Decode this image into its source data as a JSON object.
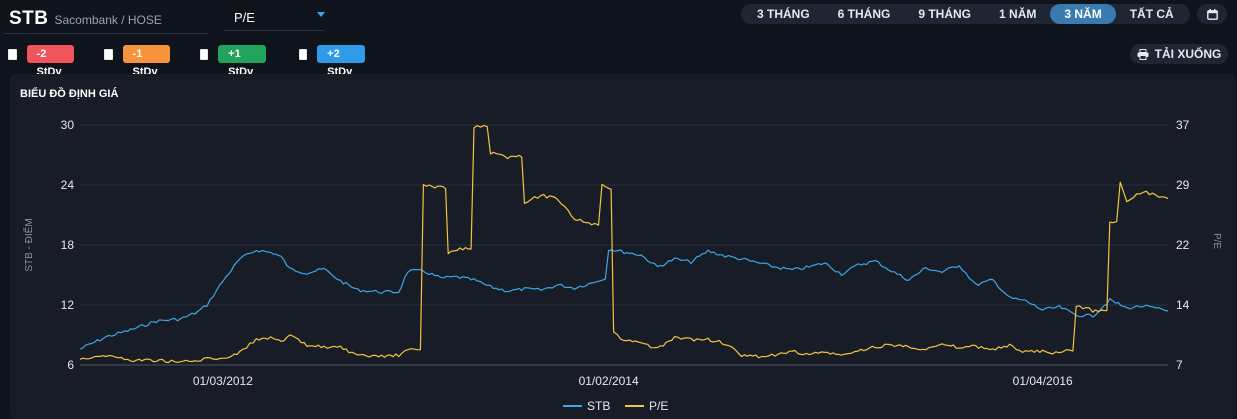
{
  "header": {
    "ticker": "STB",
    "exchange": "Sacombank / HOSE",
    "metric": "P/E"
  },
  "ranges": [
    {
      "label": "3 THÁNG",
      "active": false
    },
    {
      "label": "6 THÁNG",
      "active": false
    },
    {
      "label": "9 THÁNG",
      "active": false
    },
    {
      "label": "1 NĂM",
      "active": false
    },
    {
      "label": "3 NĂM",
      "active": true
    },
    {
      "label": "TẤT CẢ",
      "active": false
    }
  ],
  "stdv": [
    {
      "label": "-2 StDv",
      "color": "#f0545b"
    },
    {
      "label": "-1 StDv",
      "color": "#f7933b"
    },
    {
      "label": "+1 StDv",
      "color": "#21a35b"
    },
    {
      "label": "+2 StDv",
      "color": "#2f9be8"
    }
  ],
  "download_label": "TẢI XUỐNG",
  "panel_title": "BIỂU ĐỒ ĐỊNH GIÁ",
  "chart_data": {
    "type": "line",
    "ylabel_left": "STB - ĐIỂM",
    "ylabel_right": "P/E",
    "ylim_left": [
      6,
      30
    ],
    "ylim_right": [
      7,
      37
    ],
    "yticks_left": [
      6,
      12,
      18,
      24,
      30
    ],
    "yticks_right": [
      7,
      14,
      22,
      29,
      37
    ],
    "grid": true,
    "legend_position": "bottom-center",
    "x_range": [
      "2011-06-15",
      "2016-11-15"
    ],
    "xtick_labels": [
      {
        "date": "2012-03-01",
        "label": "01/03/2012"
      },
      {
        "date": "2014-02-01",
        "label": "01/02/2014"
      },
      {
        "date": "2016-04-01",
        "label": "01/04/2016"
      }
    ],
    "series": [
      {
        "name": "STB",
        "axis": "left",
        "color": "#3ea6e6",
        "points": [
          [
            "2011-06-15",
            7.6
          ],
          [
            "2011-08-01",
            8.8
          ],
          [
            "2011-09-15",
            9.5
          ],
          [
            "2011-11-01",
            10.4
          ],
          [
            "2011-12-15",
            10.6
          ],
          [
            "2012-01-15",
            11.3
          ],
          [
            "2012-02-01",
            12.0
          ],
          [
            "2012-03-01",
            14.4
          ],
          [
            "2012-04-01",
            16.6
          ],
          [
            "2012-05-01",
            17.5
          ],
          [
            "2012-06-01",
            17.2
          ],
          [
            "2012-06-15",
            16.8
          ],
          [
            "2012-07-01",
            15.6
          ],
          [
            "2012-08-01",
            15.2
          ],
          [
            "2012-09-01",
            15.6
          ],
          [
            "2012-10-01",
            14.4
          ],
          [
            "2012-11-01",
            13.5
          ],
          [
            "2012-12-15",
            13.3
          ],
          [
            "2013-01-15",
            13.3
          ],
          [
            "2013-02-01",
            15.4
          ],
          [
            "2013-03-01",
            15.4
          ],
          [
            "2013-04-01",
            14.7
          ],
          [
            "2013-05-01",
            14.8
          ],
          [
            "2013-06-01",
            14.5
          ],
          [
            "2013-07-01",
            13.8
          ],
          [
            "2013-08-01",
            13.4
          ],
          [
            "2013-09-01",
            13.6
          ],
          [
            "2013-10-01",
            13.5
          ],
          [
            "2013-11-01",
            14.0
          ],
          [
            "2013-12-01",
            13.7
          ],
          [
            "2014-01-01",
            14.2
          ],
          [
            "2014-01-20",
            14.6
          ],
          [
            "2014-02-01",
            17.6
          ],
          [
            "2014-03-01",
            17.3
          ],
          [
            "2014-04-01",
            17.0
          ],
          [
            "2014-05-01",
            15.8
          ],
          [
            "2014-06-01",
            16.6
          ],
          [
            "2014-07-01",
            16.3
          ],
          [
            "2014-08-01",
            17.4
          ],
          [
            "2014-09-01",
            16.9
          ],
          [
            "2014-10-01",
            16.6
          ],
          [
            "2014-11-01",
            16.2
          ],
          [
            "2014-12-01",
            15.8
          ],
          [
            "2015-01-01",
            15.5
          ],
          [
            "2015-02-01",
            15.8
          ],
          [
            "2015-03-01",
            16.2
          ],
          [
            "2015-04-01",
            15.1
          ],
          [
            "2015-05-01",
            16.0
          ],
          [
            "2015-06-01",
            16.4
          ],
          [
            "2015-07-01",
            15.4
          ],
          [
            "2015-08-01",
            14.5
          ],
          [
            "2015-09-01",
            15.7
          ],
          [
            "2015-10-01",
            15.3
          ],
          [
            "2015-11-01",
            16.0
          ],
          [
            "2015-12-01",
            14.0
          ],
          [
            "2016-01-01",
            14.5
          ],
          [
            "2016-02-01",
            12.7
          ],
          [
            "2016-03-01",
            12.4
          ],
          [
            "2016-04-01",
            11.5
          ],
          [
            "2016-05-01",
            11.8
          ],
          [
            "2016-06-01",
            11.0
          ],
          [
            "2016-07-01",
            10.9
          ],
          [
            "2016-08-01",
            12.5
          ],
          [
            "2016-09-01",
            11.7
          ],
          [
            "2016-10-01",
            11.9
          ],
          [
            "2016-11-15",
            11.4
          ]
        ]
      },
      {
        "name": "P/E",
        "axis": "right",
        "color": "#f2c443",
        "points": [
          [
            "2011-06-15",
            7.8
          ],
          [
            "2011-08-01",
            8.2
          ],
          [
            "2011-09-15",
            7.6
          ],
          [
            "2011-11-01",
            7.6
          ],
          [
            "2011-12-15",
            7.4
          ],
          [
            "2012-01-15",
            7.5
          ],
          [
            "2012-02-01",
            7.8
          ],
          [
            "2012-03-01",
            7.8
          ],
          [
            "2012-04-01",
            8.6
          ],
          [
            "2012-05-01",
            10.2
          ],
          [
            "2012-06-01",
            10.5
          ],
          [
            "2012-06-15",
            9.8
          ],
          [
            "2012-07-01",
            10.7
          ],
          [
            "2012-08-01",
            9.4
          ],
          [
            "2012-09-01",
            9.3
          ],
          [
            "2012-10-01",
            9.2
          ],
          [
            "2012-11-01",
            8.1
          ],
          [
            "2012-12-15",
            8.1
          ],
          [
            "2013-01-15",
            8.2
          ],
          [
            "2013-02-01",
            8.9
          ],
          [
            "2013-03-01",
            29.5
          ],
          [
            "2013-04-01",
            29.2
          ],
          [
            "2013-04-15",
            20.9
          ],
          [
            "2013-05-01",
            21.5
          ],
          [
            "2013-06-01",
            36.8
          ],
          [
            "2013-07-01",
            33.5
          ],
          [
            "2013-08-01",
            33.0
          ],
          [
            "2013-09-01",
            27.4
          ],
          [
            "2013-10-01",
            28.2
          ],
          [
            "2013-11-01",
            27.8
          ],
          [
            "2013-12-01",
            25.3
          ],
          [
            "2014-01-01",
            24.6
          ],
          [
            "2014-01-20",
            29.4
          ],
          [
            "2014-02-01",
            28.9
          ],
          [
            "2014-02-10",
            11.2
          ],
          [
            "2014-03-01",
            10.0
          ],
          [
            "2014-04-01",
            9.8
          ],
          [
            "2014-05-01",
            9.0
          ],
          [
            "2014-06-01",
            10.4
          ],
          [
            "2014-07-01",
            10.2
          ],
          [
            "2014-08-01",
            10.2
          ],
          [
            "2014-09-01",
            9.7
          ],
          [
            "2014-10-01",
            8.1
          ],
          [
            "2014-11-01",
            8.1
          ],
          [
            "2014-12-01",
            8.2
          ],
          [
            "2015-01-01",
            8.7
          ],
          [
            "2015-02-01",
            8.3
          ],
          [
            "2015-03-01",
            8.6
          ],
          [
            "2015-04-01",
            8.2
          ],
          [
            "2015-05-01",
            8.7
          ],
          [
            "2015-06-01",
            9.3
          ],
          [
            "2015-07-01",
            9.5
          ],
          [
            "2015-08-01",
            9.3
          ],
          [
            "2015-09-01",
            9.0
          ],
          [
            "2015-10-01",
            9.5
          ],
          [
            "2015-11-01",
            9.2
          ],
          [
            "2015-12-01",
            9.3
          ],
          [
            "2016-01-01",
            9.0
          ],
          [
            "2016-02-01",
            9.4
          ],
          [
            "2016-03-01",
            8.6
          ],
          [
            "2016-04-01",
            8.7
          ],
          [
            "2016-05-01",
            8.4
          ],
          [
            "2016-05-20",
            8.9
          ],
          [
            "2016-06-01",
            14.5
          ],
          [
            "2016-07-01",
            13.8
          ],
          [
            "2016-08-01",
            24.8
          ],
          [
            "2016-08-20",
            30.0
          ],
          [
            "2016-09-01",
            27.6
          ],
          [
            "2016-10-01",
            28.7
          ],
          [
            "2016-11-15",
            27.8
          ]
        ]
      }
    ]
  }
}
